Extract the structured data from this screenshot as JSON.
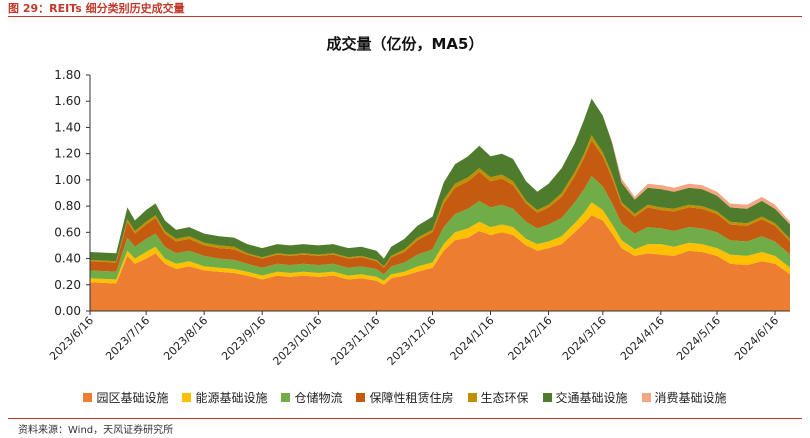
{
  "figure": {
    "caption": "图 29：REITs 细分类别历史成交量",
    "source": "资料来源：Wind，天风证券研究所"
  },
  "chart_data": {
    "type": "area",
    "stacked": true,
    "title": "成交量（亿份，MA5）",
    "xlabel": "",
    "ylabel": "",
    "ylim": [
      0,
      1.8
    ],
    "yticks": [
      "0.00",
      "0.20",
      "0.40",
      "0.60",
      "0.80",
      "1.00",
      "1.20",
      "1.40",
      "1.60",
      "1.80"
    ],
    "xticks": [
      "2023/6/16",
      "2023/7/16",
      "2023/8/16",
      "2023/9/16",
      "2023/10/16",
      "2023/11/16",
      "2023/12/16",
      "2024/1/16",
      "2024/2/16",
      "2024/3/16",
      "2024/4/16",
      "2024/5/16",
      "2024/6/16"
    ],
    "x": [
      "2023/6/16",
      "2023/6/30",
      "2023/7/6",
      "2023/7/10",
      "2023/7/16",
      "2023/7/21",
      "2023/7/26",
      "2023/8/1",
      "2023/8/8",
      "2023/8/16",
      "2023/8/24",
      "2023/9/1",
      "2023/9/8",
      "2023/9/16",
      "2023/9/24",
      "2023/10/1",
      "2023/10/8",
      "2023/10/16",
      "2023/10/24",
      "2023/11/1",
      "2023/11/8",
      "2023/11/16",
      "2023/11/20",
      "2023/11/24",
      "2023/12/1",
      "2023/12/8",
      "2023/12/16",
      "2023/12/22",
      "2023/12/28",
      "2024/1/4",
      "2024/1/10",
      "2024/1/16",
      "2024/1/22",
      "2024/1/28",
      "2024/2/4",
      "2024/2/10",
      "2024/2/16",
      "2024/2/23",
      "2024/3/1",
      "2024/3/6",
      "2024/3/10",
      "2024/3/16",
      "2024/3/21",
      "2024/3/26",
      "2024/4/2",
      "2024/4/9",
      "2024/4/16",
      "2024/4/23",
      "2024/5/1",
      "2024/5/8",
      "2024/5/16",
      "2024/5/23",
      "2024/6/1",
      "2024/6/9",
      "2024/6/16",
      "2024/6/24"
    ],
    "series": [
      {
        "name": "园区基础设施",
        "color": "#ED7D31",
        "values": [
          0.22,
          0.21,
          0.42,
          0.36,
          0.4,
          0.44,
          0.36,
          0.32,
          0.34,
          0.31,
          0.3,
          0.29,
          0.27,
          0.24,
          0.27,
          0.26,
          0.27,
          0.26,
          0.27,
          0.24,
          0.25,
          0.23,
          0.2,
          0.25,
          0.27,
          0.3,
          0.33,
          0.46,
          0.54,
          0.56,
          0.61,
          0.58,
          0.6,
          0.58,
          0.5,
          0.46,
          0.48,
          0.51,
          0.6,
          0.67,
          0.73,
          0.69,
          0.59,
          0.48,
          0.42,
          0.44,
          0.43,
          0.42,
          0.46,
          0.45,
          0.42,
          0.36,
          0.35,
          0.38,
          0.36,
          0.28
        ]
      },
      {
        "name": "能源基础设施",
        "color": "#FFC000",
        "values": [
          0.03,
          0.03,
          0.04,
          0.04,
          0.05,
          0.05,
          0.04,
          0.04,
          0.04,
          0.03,
          0.03,
          0.03,
          0.03,
          0.03,
          0.03,
          0.03,
          0.03,
          0.03,
          0.03,
          0.03,
          0.03,
          0.03,
          0.03,
          0.03,
          0.03,
          0.04,
          0.04,
          0.05,
          0.06,
          0.07,
          0.07,
          0.06,
          0.06,
          0.06,
          0.05,
          0.05,
          0.05,
          0.06,
          0.07,
          0.08,
          0.1,
          0.08,
          0.07,
          0.06,
          0.05,
          0.07,
          0.08,
          0.07,
          0.06,
          0.06,
          0.06,
          0.07,
          0.07,
          0.07,
          0.06,
          0.05
        ]
      },
      {
        "name": "仓储物流",
        "color": "#70AD47",
        "values": [
          0.06,
          0.06,
          0.1,
          0.09,
          0.1,
          0.1,
          0.09,
          0.08,
          0.08,
          0.08,
          0.07,
          0.07,
          0.06,
          0.06,
          0.06,
          0.06,
          0.06,
          0.06,
          0.06,
          0.06,
          0.06,
          0.06,
          0.05,
          0.06,
          0.07,
          0.09,
          0.1,
          0.13,
          0.14,
          0.15,
          0.16,
          0.15,
          0.15,
          0.14,
          0.13,
          0.12,
          0.13,
          0.14,
          0.16,
          0.18,
          0.2,
          0.18,
          0.16,
          0.13,
          0.12,
          0.13,
          0.12,
          0.12,
          0.12,
          0.12,
          0.12,
          0.11,
          0.11,
          0.12,
          0.11,
          0.1
        ]
      },
      {
        "name": "保障性租赁住房",
        "color": "#C55A11",
        "values": [
          0.07,
          0.07,
          0.12,
          0.1,
          0.11,
          0.12,
          0.1,
          0.09,
          0.09,
          0.08,
          0.08,
          0.08,
          0.07,
          0.07,
          0.07,
          0.07,
          0.07,
          0.07,
          0.07,
          0.07,
          0.07,
          0.06,
          0.05,
          0.07,
          0.08,
          0.11,
          0.13,
          0.18,
          0.2,
          0.21,
          0.22,
          0.2,
          0.2,
          0.18,
          0.14,
          0.12,
          0.13,
          0.16,
          0.2,
          0.24,
          0.27,
          0.23,
          0.19,
          0.14,
          0.13,
          0.15,
          0.14,
          0.15,
          0.15,
          0.15,
          0.14,
          0.12,
          0.12,
          0.13,
          0.12,
          0.1
        ]
      },
      {
        "name": "生态环保",
        "color": "#BF9000",
        "values": [
          0.01,
          0.01,
          0.02,
          0.02,
          0.02,
          0.02,
          0.02,
          0.02,
          0.02,
          0.02,
          0.02,
          0.02,
          0.01,
          0.01,
          0.01,
          0.01,
          0.01,
          0.01,
          0.01,
          0.01,
          0.01,
          0.01,
          0.01,
          0.01,
          0.02,
          0.02,
          0.02,
          0.03,
          0.03,
          0.03,
          0.03,
          0.03,
          0.03,
          0.03,
          0.02,
          0.02,
          0.02,
          0.03,
          0.03,
          0.03,
          0.04,
          0.03,
          0.03,
          0.02,
          0.02,
          0.02,
          0.02,
          0.02,
          0.02,
          0.02,
          0.02,
          0.02,
          0.02,
          0.02,
          0.02,
          0.02
        ]
      },
      {
        "name": "交通基础设施",
        "color": "#4F7B2D",
        "values": [
          0.06,
          0.06,
          0.09,
          0.08,
          0.09,
          0.09,
          0.08,
          0.07,
          0.07,
          0.07,
          0.07,
          0.07,
          0.07,
          0.07,
          0.07,
          0.07,
          0.07,
          0.07,
          0.07,
          0.07,
          0.07,
          0.07,
          0.06,
          0.07,
          0.08,
          0.09,
          0.1,
          0.13,
          0.15,
          0.16,
          0.17,
          0.16,
          0.16,
          0.17,
          0.15,
          0.14,
          0.16,
          0.19,
          0.22,
          0.26,
          0.28,
          0.28,
          0.24,
          0.15,
          0.11,
          0.13,
          0.14,
          0.13,
          0.13,
          0.13,
          0.12,
          0.11,
          0.11,
          0.12,
          0.11,
          0.11
        ]
      },
      {
        "name": "消费基础设施",
        "color": "#F4A582",
        "values": [
          0,
          0,
          0,
          0,
          0,
          0,
          0,
          0,
          0,
          0,
          0,
          0,
          0,
          0,
          0,
          0,
          0,
          0,
          0,
          0,
          0,
          0,
          0,
          0,
          0,
          0,
          0,
          0,
          0,
          0,
          0,
          0,
          0,
          0,
          0,
          0,
          0,
          0,
          0,
          0,
          0,
          0,
          0.01,
          0.03,
          0.02,
          0.03,
          0.03,
          0.03,
          0.03,
          0.03,
          0.03,
          0.03,
          0.03,
          0.03,
          0.03,
          0.02
        ]
      }
    ],
    "legend_position": "bottom",
    "grid": false
  }
}
